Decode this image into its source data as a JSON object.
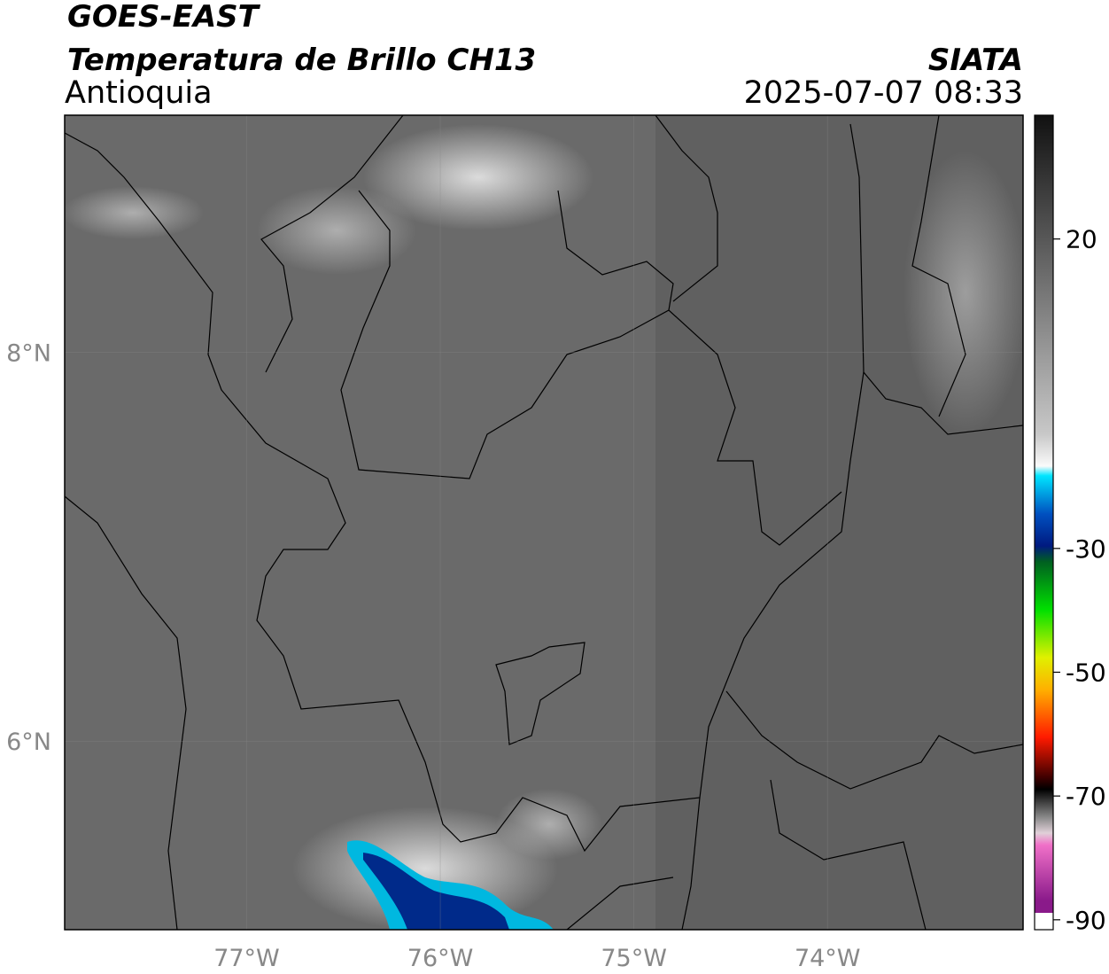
{
  "header": {
    "title": "GOES-EAST",
    "subtitle": "Temperatura de Brillo CH13",
    "region": "Antioquia",
    "source": "SIATA",
    "datetime": "2025-07-07 08:33"
  },
  "map": {
    "xlim": [
      -77.94,
      -72.99
    ],
    "ylim": [
      5.03,
      9.22
    ],
    "xticks": [
      {
        "value": -77,
        "label": "77°W"
      },
      {
        "value": -76,
        "label": "76°W"
      },
      {
        "value": -75,
        "label": "75°W"
      },
      {
        "value": -74,
        "label": "74°W"
      }
    ],
    "yticks": [
      {
        "value": 6,
        "label": "6°N"
      },
      {
        "value": 8,
        "label": "8°N"
      }
    ]
  },
  "colorbar": {
    "lim": [
      -91.6,
      40
    ],
    "ticks": [
      20,
      -30,
      -50,
      -70,
      -90
    ]
  }
}
